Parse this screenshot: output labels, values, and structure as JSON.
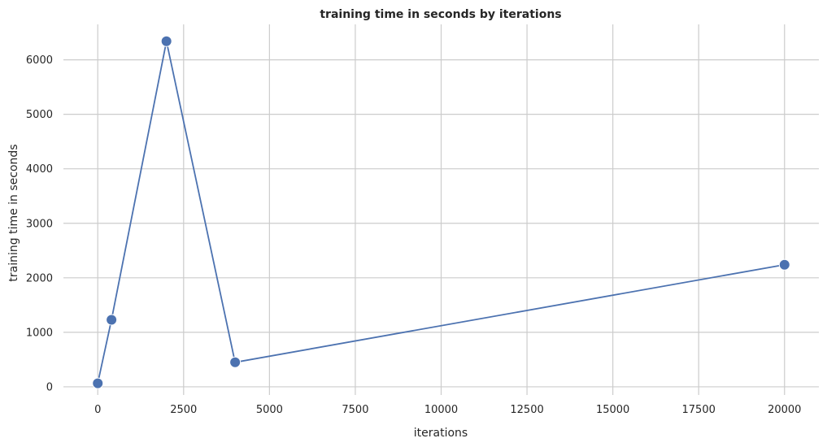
{
  "chart_data": {
    "type": "line",
    "title": "training time in seconds by iterations",
    "xlabel": "iterations",
    "ylabel": "training time in seconds",
    "xlim": [
      -1000,
      21000
    ],
    "ylim": [
      -150,
      6650
    ],
    "xticks": [
      0,
      2500,
      5000,
      7500,
      10000,
      12500,
      15000,
      17500,
      20000
    ],
    "yticks": [
      0,
      1000,
      2000,
      3000,
      4000,
      5000,
      6000
    ],
    "grid": true,
    "series": [
      {
        "color": "#4c72b0",
        "x": [
          0,
          400,
          2000,
          4000,
          20000
        ],
        "y": [
          65,
          1230,
          6340,
          450,
          2240
        ]
      }
    ]
  }
}
